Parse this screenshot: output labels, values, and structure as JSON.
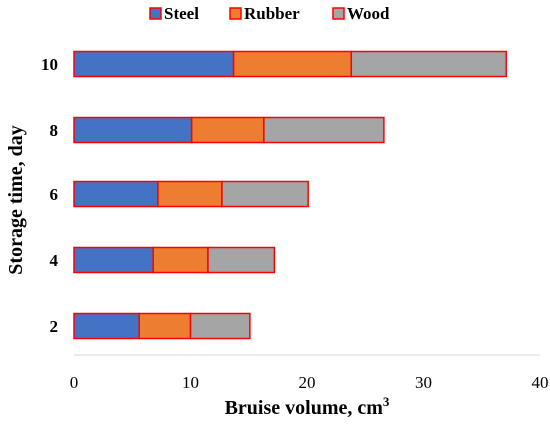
{
  "chart_data": {
    "type": "bar",
    "orientation": "horizontal",
    "stacked": true,
    "title": "",
    "xlabel": "Bruise volume, cm",
    "xlabel_superscript": "3",
    "ylabel": "Storage time, day",
    "categories": [
      "2",
      "4",
      "6",
      "8",
      "10"
    ],
    "series": [
      {
        "name": "Steel",
        "color": "#4472C4",
        "values": [
          5.6,
          6.8,
          7.2,
          10.1,
          13.7
        ]
      },
      {
        "name": "Rubber",
        "color": "#ED7D31",
        "values": [
          4.4,
          4.7,
          5.5,
          6.2,
          10.1
        ]
      },
      {
        "name": "Wood",
        "color": "#A5A5A5",
        "values": [
          5.1,
          5.7,
          7.4,
          10.3,
          13.3
        ]
      }
    ],
    "xlim": [
      0,
      40
    ],
    "xticks": [
      "0",
      "10",
      "20",
      "30",
      "40"
    ],
    "bar_border_color": "#FF0000",
    "grid": false,
    "legend_position": "top"
  }
}
